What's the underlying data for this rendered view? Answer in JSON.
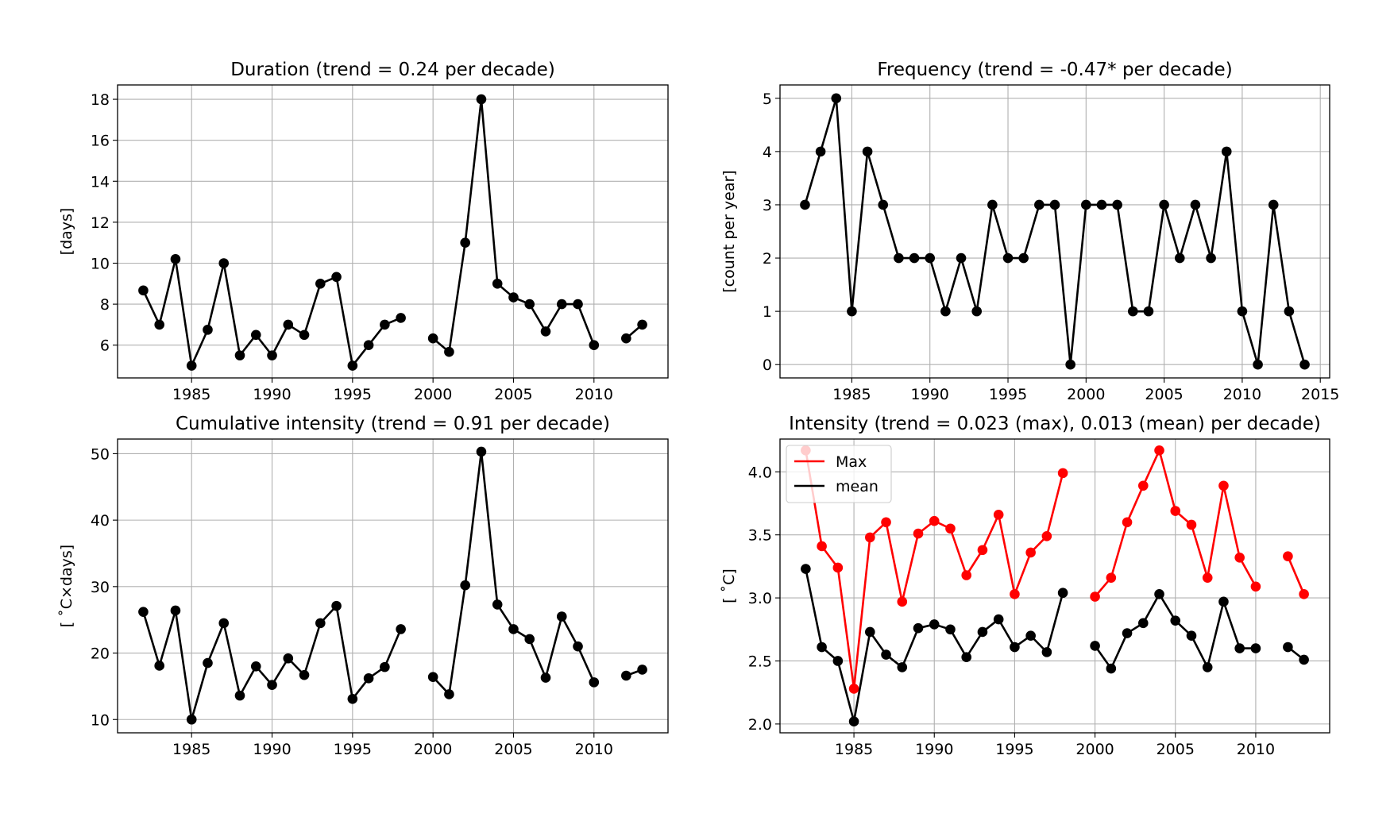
{
  "chart_data": [
    {
      "type": "line",
      "title": "Duration (trend = 0.24 per decade)",
      "xlabel": "",
      "ylabel": "[days]",
      "xlim": [
        1980.4,
        2014.6
      ],
      "ylim": [
        4.4,
        18.7
      ],
      "xticks": [
        1985,
        1990,
        1995,
        2000,
        2005,
        2010
      ],
      "yticks": [
        6,
        8,
        10,
        12,
        14,
        16,
        18
      ],
      "grid": true,
      "x": [
        1982,
        1983,
        1984,
        1985,
        1986,
        1987,
        1988,
        1989,
        1990,
        1991,
        1992,
        1993,
        1994,
        1995,
        1996,
        1997,
        1998,
        1999,
        2000,
        2001,
        2002,
        2003,
        2004,
        2005,
        2006,
        2007,
        2008,
        2009,
        2010,
        2011,
        2012,
        2013
      ],
      "series": [
        {
          "color": "#000000",
          "values": [
            8.67,
            7.0,
            10.2,
            5.0,
            6.75,
            10.0,
            5.5,
            6.5,
            5.5,
            7.0,
            6.5,
            9.0,
            9.33,
            5.0,
            6.0,
            7.0,
            7.33,
            null,
            6.33,
            5.67,
            11.0,
            18.0,
            9.0,
            8.33,
            8.0,
            6.67,
            8.0,
            8.0,
            6.0,
            null,
            6.33,
            7.0
          ]
        }
      ]
    },
    {
      "type": "line",
      "title": "Frequency (trend = -0.47* per decade)",
      "xlabel": "",
      "ylabel": "[count per year]",
      "xlim": [
        1980.4,
        2015.6
      ],
      "ylim": [
        -0.25,
        5.25
      ],
      "xticks": [
        1985,
        1990,
        1995,
        2000,
        2005,
        2010,
        2015
      ],
      "yticks": [
        0,
        1,
        2,
        3,
        4,
        5
      ],
      "grid": true,
      "x": [
        1982,
        1983,
        1984,
        1985,
        1986,
        1987,
        1988,
        1989,
        1990,
        1991,
        1992,
        1993,
        1994,
        1995,
        1996,
        1997,
        1998,
        1999,
        2000,
        2001,
        2002,
        2003,
        2004,
        2005,
        2006,
        2007,
        2008,
        2009,
        2010,
        2011,
        2012,
        2013,
        2014
      ],
      "series": [
        {
          "color": "#000000",
          "values": [
            3,
            4,
            5,
            1,
            4,
            3,
            2,
            2,
            2,
            1,
            2,
            1,
            3,
            2,
            2,
            3,
            3,
            0,
            3,
            3,
            3,
            1,
            1,
            3,
            2,
            3,
            2,
            4,
            1,
            0,
            3,
            1,
            0
          ]
        }
      ]
    },
    {
      "type": "line",
      "title": "Cumulative intensity (trend = 0.91 per decade)",
      "xlabel": "",
      "ylabel": "[$^\\circ$C$\\times$days]",
      "ylabel_display": "[ ˚C×days]",
      "xlim": [
        1980.4,
        2014.6
      ],
      "ylim": [
        8.0,
        52.2
      ],
      "xticks": [
        1985,
        1990,
        1995,
        2000,
        2005,
        2010
      ],
      "yticks": [
        10,
        20,
        30,
        40,
        50
      ],
      "grid": true,
      "x": [
        1982,
        1983,
        1984,
        1985,
        1986,
        1987,
        1988,
        1989,
        1990,
        1991,
        1992,
        1993,
        1994,
        1995,
        1996,
        1997,
        1998,
        1999,
        2000,
        2001,
        2002,
        2003,
        2004,
        2005,
        2006,
        2007,
        2008,
        2009,
        2010,
        2011,
        2012,
        2013
      ],
      "series": [
        {
          "color": "#000000",
          "values": [
            26.2,
            18.1,
            26.4,
            10.0,
            18.5,
            24.5,
            13.6,
            18.0,
            15.2,
            19.2,
            16.7,
            24.5,
            27.1,
            13.1,
            16.2,
            17.9,
            23.6,
            null,
            16.4,
            13.8,
            30.2,
            50.3,
            27.3,
            23.6,
            22.1,
            16.3,
            25.5,
            21.0,
            15.6,
            null,
            16.6,
            17.5
          ]
        }
      ]
    },
    {
      "type": "line",
      "title": "Intensity (trend = 0.023 (max), 0.013 (mean) per decade)",
      "xlabel": "",
      "ylabel": "[ ˚C]",
      "xlim": [
        1980.4,
        2014.6
      ],
      "ylim": [
        1.93,
        4.26
      ],
      "xticks": [
        1985,
        1990,
        1995,
        2000,
        2005,
        2010
      ],
      "yticks": [
        2.0,
        2.5,
        3.0,
        3.5,
        4.0
      ],
      "ytick_labels": [
        "2.0",
        "2.5",
        "3.0",
        "3.5",
        "4.0"
      ],
      "grid": true,
      "legend": "upper-left",
      "x": [
        1982,
        1983,
        1984,
        1985,
        1986,
        1987,
        1988,
        1989,
        1990,
        1991,
        1992,
        1993,
        1994,
        1995,
        1996,
        1997,
        1998,
        1999,
        2000,
        2001,
        2002,
        2003,
        2004,
        2005,
        2006,
        2007,
        2008,
        2009,
        2010,
        2011,
        2012,
        2013
      ],
      "series": [
        {
          "name": "Max",
          "color": "#ff0000",
          "values": [
            4.17,
            3.41,
            3.24,
            2.28,
            3.48,
            3.6,
            2.97,
            3.51,
            3.61,
            3.55,
            3.18,
            3.38,
            3.66,
            3.03,
            3.36,
            3.49,
            3.99,
            null,
            3.01,
            3.16,
            3.6,
            3.89,
            4.17,
            3.69,
            3.58,
            3.16,
            3.89,
            3.32,
            3.09,
            null,
            3.33,
            3.03
          ]
        },
        {
          "name": "mean",
          "color": "#000000",
          "values": [
            3.23,
            2.61,
            2.5,
            2.02,
            2.73,
            2.55,
            2.45,
            2.76,
            2.79,
            2.75,
            2.53,
            2.73,
            2.83,
            2.61,
            2.7,
            2.57,
            3.04,
            null,
            2.62,
            2.44,
            2.72,
            2.8,
            3.03,
            2.82,
            2.7,
            2.45,
            2.97,
            2.6,
            2.6,
            null,
            2.61,
            2.51
          ]
        }
      ]
    }
  ]
}
